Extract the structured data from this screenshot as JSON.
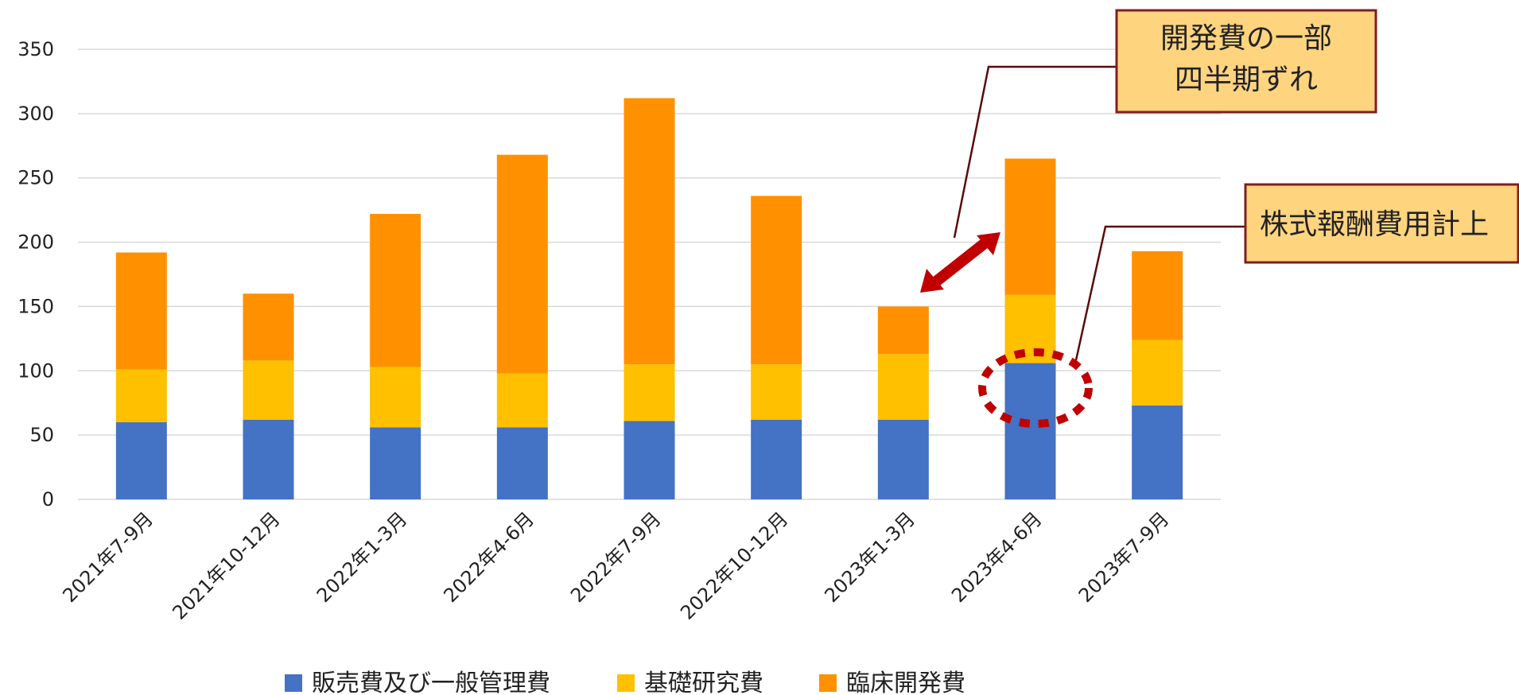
{
  "chart_data": {
    "type": "bar",
    "stacked": true,
    "title": "",
    "xlabel": "",
    "ylabel": "",
    "ylim": [
      0,
      350
    ],
    "yticks": [
      "0",
      "50",
      "100",
      "150",
      "200",
      "250",
      "300",
      "350"
    ],
    "grid": true,
    "legend_position": "bottom",
    "categories": [
      "2021年7-9月",
      "2021年10-12月",
      "2022年1-3月",
      "2022年4-6月",
      "2022年7-9月",
      "2022年10-12月",
      "2023年1-3月",
      "2023年4-6月",
      "2023年7-9月"
    ],
    "series": [
      {
        "name": "販売費及び一般管理費",
        "color": "#4472C4",
        "values": [
          60,
          62,
          56,
          56,
          61,
          62,
          62,
          106,
          73
        ]
      },
      {
        "name": "基礎研究費",
        "color": "#FFC000",
        "values": [
          41,
          46,
          47,
          42,
          44,
          43,
          51,
          53,
          51
        ]
      },
      {
        "name": "臨床開発費",
        "color": "#FF9100",
        "values": [
          91,
          52,
          119,
          170,
          207,
          131,
          37,
          106,
          69
        ]
      }
    ],
    "annotations": [
      {
        "id": "dev-shift",
        "text_lines": [
          "開発費の一部",
          "四半期ずれ"
        ],
        "between": [
          "2023年1-3月",
          "2023年4-6月"
        ],
        "marker": "double-arrow",
        "arrow_color": "#C00000"
      },
      {
        "id": "stock-comp",
        "text": "株式報酬費用計上",
        "target_category": "2023年4-6月",
        "target_series": "販売費及び一般管理費",
        "marker": "dotted-ellipse",
        "marker_color": "#C00000"
      }
    ]
  },
  "style": {
    "grid_color": "#D9D9D9",
    "callout_fill": "#FFD47F",
    "callout_border": "#7F1F1F",
    "leader_color": "#5A0A0A"
  }
}
